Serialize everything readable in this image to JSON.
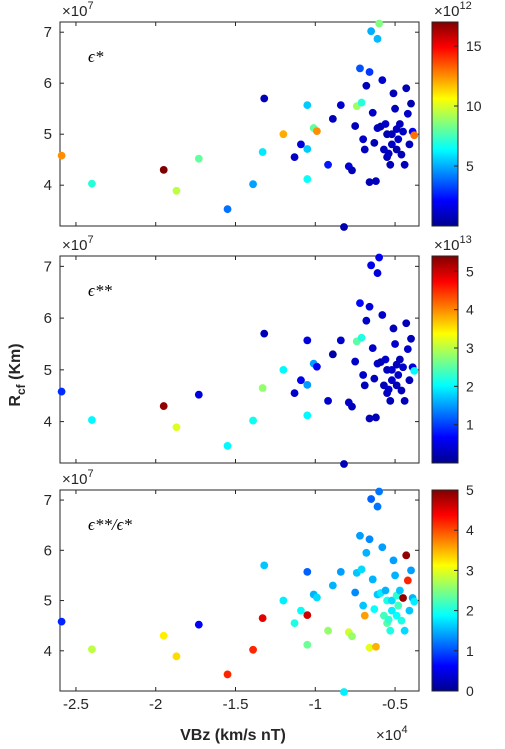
{
  "figure": {
    "xlabel": "VBz (km/s nT)",
    "ylabel_main": "R",
    "ylabel_sub": "cf",
    "ylabel_unit": " (Km)",
    "x_exponent": "×10",
    "x_exponent_power": "4",
    "y_exponent": "×10",
    "y_exponent_power": "7"
  },
  "chart_data": [
    {
      "type": "scatter",
      "panel": "top",
      "annotation": "ϵ*",
      "xlim": [
        -2.6,
        -0.35
      ],
      "ylim": [
        3.2,
        7.2
      ],
      "x_ticks": [
        -2.5,
        -2,
        -1.5,
        -1,
        -0.5
      ],
      "x_tick_labels": [
        "",
        "",
        "",
        "",
        ""
      ],
      "y_ticks": [
        4,
        5,
        6,
        7
      ],
      "y_tick_labels": [
        "4",
        "5",
        "6",
        "7"
      ],
      "y_exponent": "×10",
      "y_exponent_power": "7",
      "colorbar": {
        "min": 0,
        "max": 17,
        "ticks": [
          5,
          10,
          15
        ],
        "tick_labels": [
          "5",
          "10",
          "15"
        ],
        "exponent": "×10",
        "exponent_power": "12"
      },
      "points": [
        {
          "x": -2.59,
          "y": 4.58,
          "c": 12.5
        },
        {
          "x": -2.4,
          "y": 4.03,
          "c": 7.0
        },
        {
          "x": -1.95,
          "y": 4.3,
          "c": 17.0
        },
        {
          "x": -1.87,
          "y": 3.89,
          "c": 9.5
        },
        {
          "x": -1.73,
          "y": 4.52,
          "c": 8.0
        },
        {
          "x": -1.55,
          "y": 3.53,
          "c": 4.0
        },
        {
          "x": -1.39,
          "y": 4.02,
          "c": 4.8
        },
        {
          "x": -1.32,
          "y": 5.7,
          "c": 0.9
        },
        {
          "x": -1.33,
          "y": 4.65,
          "c": 6.0
        },
        {
          "x": -1.2,
          "y": 5.0,
          "c": 12.0
        },
        {
          "x": -1.13,
          "y": 4.55,
          "c": 1.2
        },
        {
          "x": -1.09,
          "y": 4.8,
          "c": 1.5
        },
        {
          "x": -1.05,
          "y": 5.57,
          "c": 5.5
        },
        {
          "x": -1.05,
          "y": 4.71,
          "c": 5.5
        },
        {
          "x": -1.05,
          "y": 4.12,
          "c": 6.5
        },
        {
          "x": -1.01,
          "y": 5.12,
          "c": 8.0
        },
        {
          "x": -0.99,
          "y": 5.06,
          "c": 12.5
        },
        {
          "x": -0.92,
          "y": 4.4,
          "c": 2.5
        },
        {
          "x": -0.89,
          "y": 5.3,
          "c": 1.0
        },
        {
          "x": -0.84,
          "y": 5.57,
          "c": 1.3
        },
        {
          "x": -0.82,
          "y": 3.18,
          "c": 0.8
        },
        {
          "x": -0.79,
          "y": 4.37,
          "c": 1.5
        },
        {
          "x": -0.77,
          "y": 4.29,
          "c": 0.9
        },
        {
          "x": -0.75,
          "y": 5.16,
          "c": 1.0
        },
        {
          "x": -0.74,
          "y": 5.55,
          "c": 9.0
        },
        {
          "x": -0.72,
          "y": 6.29,
          "c": 3.5
        },
        {
          "x": -0.71,
          "y": 5.62,
          "c": 7.0
        },
        {
          "x": -0.7,
          "y": 4.9,
          "c": 1.2
        },
        {
          "x": -0.69,
          "y": 4.7,
          "c": 1.1
        },
        {
          "x": -0.68,
          "y": 5.95,
          "c": 1.0
        },
        {
          "x": -0.66,
          "y": 6.22,
          "c": 3.0
        },
        {
          "x": -0.66,
          "y": 4.06,
          "c": 0.9
        },
        {
          "x": -0.65,
          "y": 7.02,
          "c": 5.0
        },
        {
          "x": -0.64,
          "y": 5.42,
          "c": 1.2
        },
        {
          "x": -0.63,
          "y": 4.83,
          "c": 0.9
        },
        {
          "x": -0.62,
          "y": 4.08,
          "c": 1.0
        },
        {
          "x": -0.61,
          "y": 5.12,
          "c": 1.1
        },
        {
          "x": -0.61,
          "y": 6.87,
          "c": 5.2
        },
        {
          "x": -0.6,
          "y": 7.17,
          "c": 8.5
        },
        {
          "x": -0.59,
          "y": 5.15,
          "c": 0.8
        },
        {
          "x": -0.58,
          "y": 6.06,
          "c": 1.3
        },
        {
          "x": -0.57,
          "y": 4.7,
          "c": 1.0
        },
        {
          "x": -0.56,
          "y": 5.2,
          "c": 1.2
        },
        {
          "x": -0.55,
          "y": 4.55,
          "c": 1.0
        },
        {
          "x": -0.55,
          "y": 5.0,
          "c": 0.8
        },
        {
          "x": -0.54,
          "y": 4.62,
          "c": 1.1
        },
        {
          "x": -0.53,
          "y": 4.4,
          "c": 0.9
        },
        {
          "x": -0.52,
          "y": 5.0,
          "c": 1.0
        },
        {
          "x": -0.52,
          "y": 4.8,
          "c": 1.2
        },
        {
          "x": -0.51,
          "y": 5.8,
          "c": 0.9
        },
        {
          "x": -0.5,
          "y": 5.5,
          "c": 1.0
        },
        {
          "x": -0.49,
          "y": 5.1,
          "c": 1.1
        },
        {
          "x": -0.49,
          "y": 4.7,
          "c": 0.8
        },
        {
          "x": -0.48,
          "y": 4.9,
          "c": 1.2
        },
        {
          "x": -0.47,
          "y": 5.2,
          "c": 1.0
        },
        {
          "x": -0.46,
          "y": 4.6,
          "c": 0.9
        },
        {
          "x": -0.45,
          "y": 5.05,
          "c": 1.1
        },
        {
          "x": -0.44,
          "y": 4.4,
          "c": 1.0
        },
        {
          "x": -0.43,
          "y": 5.9,
          "c": 0.9
        },
        {
          "x": -0.42,
          "y": 5.4,
          "c": 1.2
        },
        {
          "x": -0.41,
          "y": 4.8,
          "c": 1.0
        },
        {
          "x": -0.4,
          "y": 5.6,
          "c": 0.8
        },
        {
          "x": -0.39,
          "y": 5.05,
          "c": 2.0
        },
        {
          "x": -0.38,
          "y": 4.98,
          "c": 13.0
        }
      ]
    },
    {
      "type": "scatter",
      "panel": "middle",
      "annotation": "ϵ**",
      "xlim": [
        -2.6,
        -0.35
      ],
      "ylim": [
        3.2,
        7.2
      ],
      "x_ticks": [
        -2.5,
        -2,
        -1.5,
        -1,
        -0.5
      ],
      "x_tick_labels": [
        "",
        "",
        "",
        "",
        ""
      ],
      "y_ticks": [
        4,
        5,
        6,
        7
      ],
      "y_tick_labels": [
        "4",
        "5",
        "6",
        "7"
      ],
      "y_exponent": "×10",
      "y_exponent_power": "7",
      "colorbar": {
        "min": 0,
        "max": 5.4,
        "ticks": [
          1,
          2,
          3,
          4,
          5
        ],
        "tick_labels": [
          "1",
          "2",
          "3",
          "4",
          "5"
        ],
        "exponent": "×10",
        "exponent_power": "13"
      },
      "points": [
        {
          "x": -2.59,
          "y": 4.58,
          "c": 0.9
        },
        {
          "x": -2.4,
          "y": 4.03,
          "c": 2.0
        },
        {
          "x": -1.95,
          "y": 4.3,
          "c": 5.3
        },
        {
          "x": -1.87,
          "y": 3.89,
          "c": 3.2
        },
        {
          "x": -1.73,
          "y": 4.52,
          "c": 0.5
        },
        {
          "x": -1.55,
          "y": 3.53,
          "c": 2.0
        },
        {
          "x": -1.39,
          "y": 4.02,
          "c": 2.1
        },
        {
          "x": -1.32,
          "y": 5.7,
          "c": 0.3
        },
        {
          "x": -1.33,
          "y": 4.65,
          "c": 2.8
        },
        {
          "x": -1.2,
          "y": 5.0,
          "c": 2.0
        },
        {
          "x": -1.13,
          "y": 4.55,
          "c": 0.4
        },
        {
          "x": -1.09,
          "y": 4.8,
          "c": 0.6
        },
        {
          "x": -1.05,
          "y": 5.57,
          "c": 0.5
        },
        {
          "x": -1.05,
          "y": 4.71,
          "c": 1.5
        },
        {
          "x": -1.05,
          "y": 4.12,
          "c": 2.0
        },
        {
          "x": -1.01,
          "y": 5.12,
          "c": 1.5
        },
        {
          "x": -0.99,
          "y": 5.06,
          "c": 0.6
        },
        {
          "x": -0.92,
          "y": 4.4,
          "c": 0.4
        },
        {
          "x": -0.89,
          "y": 5.3,
          "c": 0.2
        },
        {
          "x": -0.84,
          "y": 5.57,
          "c": 0.4
        },
        {
          "x": -0.82,
          "y": 3.18,
          "c": 0.3
        },
        {
          "x": -0.79,
          "y": 4.37,
          "c": 0.4
        },
        {
          "x": -0.77,
          "y": 4.29,
          "c": 0.3
        },
        {
          "x": -0.75,
          "y": 5.16,
          "c": 0.4
        },
        {
          "x": -0.74,
          "y": 5.55,
          "c": 2.5
        },
        {
          "x": -0.72,
          "y": 6.29,
          "c": 0.7
        },
        {
          "x": -0.71,
          "y": 5.62,
          "c": 2.2
        },
        {
          "x": -0.7,
          "y": 4.9,
          "c": 0.4
        },
        {
          "x": -0.69,
          "y": 4.7,
          "c": 0.3
        },
        {
          "x": -0.68,
          "y": 5.95,
          "c": 0.4
        },
        {
          "x": -0.66,
          "y": 6.22,
          "c": 0.5
        },
        {
          "x": -0.66,
          "y": 4.06,
          "c": 0.3
        },
        {
          "x": -0.65,
          "y": 7.02,
          "c": 0.6
        },
        {
          "x": -0.64,
          "y": 5.42,
          "c": 0.4
        },
        {
          "x": -0.63,
          "y": 4.83,
          "c": 0.3
        },
        {
          "x": -0.62,
          "y": 4.08,
          "c": 0.3
        },
        {
          "x": -0.61,
          "y": 5.12,
          "c": 0.4
        },
        {
          "x": -0.61,
          "y": 6.87,
          "c": 0.5
        },
        {
          "x": -0.6,
          "y": 7.17,
          "c": 0.6
        },
        {
          "x": -0.59,
          "y": 5.15,
          "c": 0.3
        },
        {
          "x": -0.58,
          "y": 6.06,
          "c": 0.4
        },
        {
          "x": -0.57,
          "y": 4.7,
          "c": 0.3
        },
        {
          "x": -0.56,
          "y": 5.2,
          "c": 0.4
        },
        {
          "x": -0.55,
          "y": 4.55,
          "c": 0.3
        },
        {
          "x": -0.55,
          "y": 5.0,
          "c": 0.3
        },
        {
          "x": -0.54,
          "y": 4.62,
          "c": 0.4
        },
        {
          "x": -0.53,
          "y": 4.4,
          "c": 0.3
        },
        {
          "x": -0.52,
          "y": 5.0,
          "c": 0.4
        },
        {
          "x": -0.52,
          "y": 4.8,
          "c": 0.4
        },
        {
          "x": -0.51,
          "y": 5.8,
          "c": 0.3
        },
        {
          "x": -0.5,
          "y": 5.5,
          "c": 0.4
        },
        {
          "x": -0.49,
          "y": 5.1,
          "c": 0.3
        },
        {
          "x": -0.49,
          "y": 4.7,
          "c": 0.3
        },
        {
          "x": -0.48,
          "y": 4.9,
          "c": 0.4
        },
        {
          "x": -0.47,
          "y": 5.2,
          "c": 0.3
        },
        {
          "x": -0.46,
          "y": 4.6,
          "c": 0.3
        },
        {
          "x": -0.45,
          "y": 5.05,
          "c": 0.4
        },
        {
          "x": -0.44,
          "y": 4.4,
          "c": 0.3
        },
        {
          "x": -0.43,
          "y": 5.9,
          "c": 0.3
        },
        {
          "x": -0.42,
          "y": 5.4,
          "c": 0.4
        },
        {
          "x": -0.41,
          "y": 4.8,
          "c": 0.3
        },
        {
          "x": -0.4,
          "y": 5.6,
          "c": 0.3
        },
        {
          "x": -0.39,
          "y": 5.05,
          "c": 0.5
        },
        {
          "x": -0.38,
          "y": 4.98,
          "c": 2.0
        }
      ]
    },
    {
      "type": "scatter",
      "panel": "bottom",
      "annotation": "ϵ**/ϵ*",
      "xlim": [
        -2.6,
        -0.35
      ],
      "ylim": [
        3.2,
        7.2
      ],
      "x_ticks": [
        -2.5,
        -2,
        -1.5,
        -1,
        -0.5
      ],
      "x_tick_labels": [
        "-2.5",
        "-2",
        "-1.5",
        "-1",
        "-0.5"
      ],
      "y_ticks": [
        4,
        5,
        6,
        7
      ],
      "y_tick_labels": [
        "4",
        "5",
        "6",
        "7"
      ],
      "y_exponent": "×10",
      "y_exponent_power": "7",
      "colorbar": {
        "min": 0,
        "max": 5,
        "ticks": [
          0,
          1,
          2,
          3,
          4,
          5
        ],
        "tick_labels": [
          "0",
          "1",
          "2",
          "3",
          "4",
          "5"
        ]
      },
      "points": [
        {
          "x": -2.59,
          "y": 4.58,
          "c": 0.8
        },
        {
          "x": -2.4,
          "y": 4.03,
          "c": 2.8
        },
        {
          "x": -1.95,
          "y": 4.3,
          "c": 3.2
        },
        {
          "x": -1.87,
          "y": 3.89,
          "c": 3.3
        },
        {
          "x": -1.73,
          "y": 4.52,
          "c": 0.6
        },
        {
          "x": -1.55,
          "y": 3.53,
          "c": 4.2
        },
        {
          "x": -1.39,
          "y": 4.02,
          "c": 4.2
        },
        {
          "x": -1.32,
          "y": 5.7,
          "c": 1.6
        },
        {
          "x": -1.33,
          "y": 4.65,
          "c": 4.5
        },
        {
          "x": -1.2,
          "y": 5.0,
          "c": 1.8
        },
        {
          "x": -1.13,
          "y": 4.55,
          "c": 2.0
        },
        {
          "x": -1.09,
          "y": 4.8,
          "c": 1.9
        },
        {
          "x": -1.05,
          "y": 5.57,
          "c": 1.1
        },
        {
          "x": -1.05,
          "y": 4.71,
          "c": 4.6
        },
        {
          "x": -1.05,
          "y": 4.12,
          "c": 2.4
        },
        {
          "x": -1.01,
          "y": 5.12,
          "c": 1.5
        },
        {
          "x": -0.99,
          "y": 5.06,
          "c": 1.7
        },
        {
          "x": -0.92,
          "y": 4.4,
          "c": 2.6
        },
        {
          "x": -0.89,
          "y": 5.3,
          "c": 1.5
        },
        {
          "x": -0.84,
          "y": 5.57,
          "c": 1.4
        },
        {
          "x": -0.82,
          "y": 3.18,
          "c": 1.8
        },
        {
          "x": -0.79,
          "y": 4.37,
          "c": 2.9
        },
        {
          "x": -0.77,
          "y": 4.29,
          "c": 2.6
        },
        {
          "x": -0.75,
          "y": 5.16,
          "c": 1.3
        },
        {
          "x": -0.74,
          "y": 5.55,
          "c": 1.6
        },
        {
          "x": -0.72,
          "y": 6.29,
          "c": 1.4
        },
        {
          "x": -0.71,
          "y": 5.62,
          "c": 1.7
        },
        {
          "x": -0.7,
          "y": 4.9,
          "c": 1.6
        },
        {
          "x": -0.69,
          "y": 4.7,
          "c": 3.6
        },
        {
          "x": -0.68,
          "y": 5.95,
          "c": 1.5
        },
        {
          "x": -0.66,
          "y": 6.22,
          "c": 1.3
        },
        {
          "x": -0.66,
          "y": 4.06,
          "c": 3.0
        },
        {
          "x": -0.65,
          "y": 7.02,
          "c": 1.1
        },
        {
          "x": -0.64,
          "y": 5.42,
          "c": 1.5
        },
        {
          "x": -0.63,
          "y": 4.83,
          "c": 1.9
        },
        {
          "x": -0.62,
          "y": 4.08,
          "c": 3.5
        },
        {
          "x": -0.61,
          "y": 5.12,
          "c": 1.6
        },
        {
          "x": -0.61,
          "y": 6.87,
          "c": 1.2
        },
        {
          "x": -0.6,
          "y": 7.17,
          "c": 1.2
        },
        {
          "x": -0.59,
          "y": 5.15,
          "c": 1.8
        },
        {
          "x": -0.58,
          "y": 6.06,
          "c": 1.4
        },
        {
          "x": -0.57,
          "y": 4.7,
          "c": 2.2
        },
        {
          "x": -0.56,
          "y": 5.2,
          "c": 1.5
        },
        {
          "x": -0.55,
          "y": 4.55,
          "c": 2.3
        },
        {
          "x": -0.55,
          "y": 5.0,
          "c": 2.0
        },
        {
          "x": -0.54,
          "y": 4.62,
          "c": 2.1
        },
        {
          "x": -0.53,
          "y": 4.4,
          "c": 2.0
        },
        {
          "x": -0.52,
          "y": 5.0,
          "c": 1.7
        },
        {
          "x": -0.52,
          "y": 4.8,
          "c": 1.8
        },
        {
          "x": -0.51,
          "y": 5.8,
          "c": 1.4
        },
        {
          "x": -0.5,
          "y": 5.5,
          "c": 1.5
        },
        {
          "x": -0.49,
          "y": 5.1,
          "c": 2.1
        },
        {
          "x": -0.49,
          "y": 4.7,
          "c": 1.9
        },
        {
          "x": -0.48,
          "y": 4.9,
          "c": 2.2
        },
        {
          "x": -0.47,
          "y": 5.2,
          "c": 1.6
        },
        {
          "x": -0.46,
          "y": 4.6,
          "c": 2.0
        },
        {
          "x": -0.45,
          "y": 5.05,
          "c": 4.9
        },
        {
          "x": -0.44,
          "y": 4.4,
          "c": 1.7
        },
        {
          "x": -0.43,
          "y": 5.9,
          "c": 4.9
        },
        {
          "x": -0.42,
          "y": 5.4,
          "c": 4.2
        },
        {
          "x": -0.41,
          "y": 4.8,
          "c": 1.6
        },
        {
          "x": -0.4,
          "y": 5.6,
          "c": 1.4
        },
        {
          "x": -0.39,
          "y": 5.05,
          "c": 1.5
        },
        {
          "x": -0.38,
          "y": 4.98,
          "c": 1.8
        }
      ]
    }
  ]
}
